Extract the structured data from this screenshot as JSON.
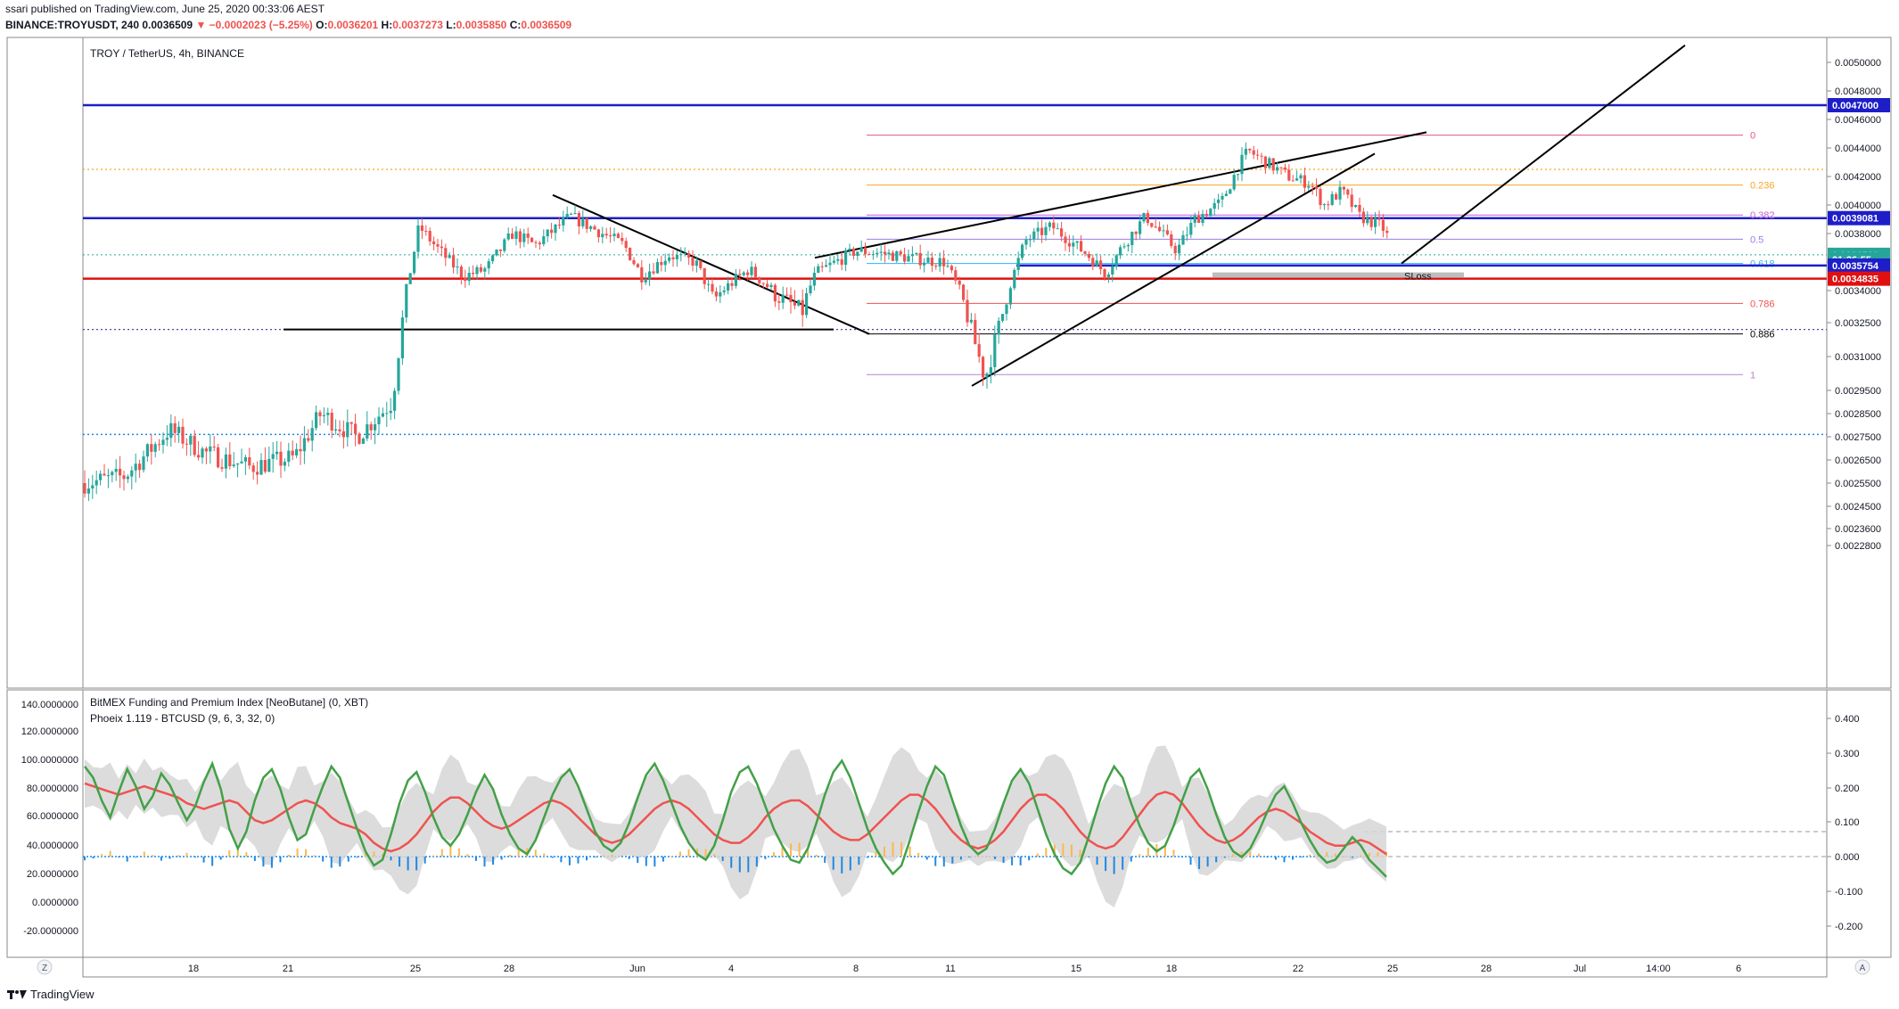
{
  "header": {
    "publisher_line": "ssari published on TradingView.com, June 25, 2020 00:33:06 AEST",
    "symbol": "BINANCE:TROYUSDT, 240",
    "last": "0.0036509",
    "change": "▼ −0.0002023 (−5.25%)",
    "o_label": "O:",
    "o": "0.0036201",
    "h_label": "H:",
    "h": "0.0037273",
    "l_label": "L:",
    "l": "0.0035850",
    "c_label": "C:",
    "c": "0.0036509"
  },
  "footer": {
    "brand": "TradingView"
  },
  "colors": {
    "up": "#26a69a",
    "down": "#ef5350",
    "blue_line": "#1e1ec8",
    "red_line": "#e01010",
    "fib_0": "#e0578a",
    "fib_236": "#f5a623",
    "fib_382": "#c35bd8",
    "fib_5": "#9c7ce8",
    "fib_618": "#29b6f6",
    "fib_786": "#ef5350",
    "fib_886": "#000000",
    "fib_1": "#b388cc",
    "osc_green": "#43a047",
    "osc_red": "#ef5350",
    "funding_blue": "#1e88e5",
    "funding_orange": "#ffb74d"
  },
  "toolbar": {
    "z_button": "Z",
    "a_button": "A"
  },
  "chart_data": [
    {
      "type": "candlestick",
      "title": "TROY / TetherUS, 4h, BINANCE",
      "ylim": [
        0.00228,
        0.00515
      ],
      "y_ticks": [
        "0.0050000",
        "0.0048000",
        "0.0046000",
        "0.0044000",
        "0.0042000",
        "0.0040000",
        "0.0038000",
        "0.0036000",
        "0.0034000",
        "0.0032500",
        "0.0031000",
        "0.0029500",
        "0.0028500",
        "0.0027500",
        "0.0026500",
        "0.0025500",
        "0.0024500",
        "0.0023600",
        "0.0022800"
      ],
      "y_tick_values": [
        0.005,
        0.0048,
        0.0046,
        0.0044,
        0.0042,
        0.004,
        0.0038,
        0.0036,
        0.0034,
        0.00325,
        0.0031,
        0.00295,
        0.00285,
        0.00275,
        0.00265,
        0.00255,
        0.00245,
        0.00236,
        0.00228
      ],
      "x_ticks": [
        "18",
        "21",
        "25",
        "28",
        "Jun",
        "4",
        "8",
        "11",
        "15",
        "18",
        "22",
        "25",
        "28",
        "Jul",
        "14:00",
        "6"
      ],
      "price_labels": [
        {
          "text": "0.0047000",
          "value": 0.0047,
          "color": "#1e1ec8"
        },
        {
          "text": "0.0039081",
          "value": 0.0039081,
          "color": "#1e1ec8"
        },
        {
          "text": "0.0036509",
          "value": 0.0036509,
          "color": "#26a69a"
        },
        {
          "text": "01:26:55",
          "value": 0.00362,
          "color": "#26a69a"
        },
        {
          "text": "0.0035754",
          "value": 0.0035754,
          "color": "#1e1ec8"
        },
        {
          "text": "0.0034835",
          "value": 0.0034835,
          "color": "#e01010"
        }
      ],
      "horizontal_levels": [
        {
          "value": 0.0047,
          "style": "solid",
          "color": "#1e1ec8",
          "width": 2.5
        },
        {
          "value": 0.0039081,
          "style": "solid",
          "color": "#1e1ec8",
          "width": 2.5
        },
        {
          "value": 0.0034835,
          "style": "solid",
          "color": "#e01010",
          "width": 2.5
        },
        {
          "value": 0.00425,
          "style": "dotted",
          "color": "#f5a623",
          "width": 1.2
        },
        {
          "value": 0.00322,
          "style": "dotted",
          "color": "#5b3fa0",
          "width": 1.2
        },
        {
          "value": 0.00276,
          "style": "dotted",
          "color": "#1e88e5",
          "width": 1.5
        },
        {
          "value": 0.0036509,
          "style": "dotted",
          "color": "#26a69a",
          "width": 1
        }
      ],
      "fib_levels": [
        {
          "label": "0",
          "value": 0.00449
        },
        {
          "label": "0.236",
          "value": 0.00414
        },
        {
          "label": "0.382",
          "value": 0.00393
        },
        {
          "label": "0.5",
          "value": 0.00376
        },
        {
          "label": "0.618",
          "value": 0.00359
        },
        {
          "label": "0.786",
          "value": 0.00334
        },
        {
          "label": "0.886",
          "value": 0.0032
        },
        {
          "label": "1",
          "value": 0.00302
        }
      ],
      "annotation": "SLoss"
    },
    {
      "type": "line",
      "title": "BitMEX Funding and Premium Index [NeoButane] (0, XBT)",
      "subtitle": "Phoeix 1.119 - BTCUSD (9, 6, 3, 32, 0)",
      "ylim": [
        -30,
        150
      ],
      "y_ticks_left": [
        "140.0000000",
        "120.0000000",
        "100.0000000",
        "80.0000000",
        "60.0000000",
        "40.0000000",
        "20.0000000",
        "0.0000000",
        "-20.0000000"
      ],
      "y_tick_values_left": [
        140,
        120,
        100,
        80,
        60,
        40,
        20,
        0,
        -20
      ],
      "y_ticks_right": [
        "0.400",
        "0.300",
        "0.200",
        "0.100",
        "0.000",
        "-0.100",
        "-0.200"
      ],
      "y_tick_values_right": [
        0.4,
        0.3,
        0.2,
        0.1,
        0.0,
        -0.1,
        -0.2
      ],
      "series": [
        {
          "name": "",
          "values": [
            96,
            88,
            72,
            60,
            78,
            94,
            82,
            66,
            75,
            91,
            83,
            70,
            58,
            68,
            85,
            98,
            80,
            52,
            38,
            50,
            72,
            88,
            94,
            80,
            60,
            44,
            48,
            66,
            82,
            96,
            88,
            70,
            52,
            36,
            26,
            30,
            48,
            70,
            86,
            92,
            78,
            60,
            46,
            40,
            48,
            62,
            78,
            90,
            80,
            62,
            48,
            38,
            34,
            44,
            60,
            76,
            88,
            94,
            82,
            66,
            50,
            40,
            36,
            42,
            56,
            74,
            90,
            98,
            86,
            70,
            54,
            42,
            34,
            30,
            40,
            58,
            78,
            92,
            96,
            84,
            68,
            52,
            40,
            30,
            28,
            38,
            56,
            76,
            92,
            100,
            88,
            70,
            52,
            38,
            28,
            20,
            26,
            44,
            64,
            82,
            96,
            90,
            72,
            54,
            40,
            34,
            38,
            52,
            70,
            86,
            94,
            84,
            66,
            48,
            34,
            24,
            20,
            28,
            46,
            66,
            84,
            96,
            88,
            70,
            54,
            42,
            36,
            40,
            54,
            72,
            88,
            94,
            80,
            62,
            46,
            36,
            32,
            38,
            50,
            64,
            76,
            82,
            70,
            56,
            44,
            34,
            28,
            30,
            38,
            46,
            40,
            30,
            24,
            18
          ]
        },
        {
          "name": "",
          "values": [
            84,
            82,
            80,
            78,
            76,
            78,
            80,
            82,
            80,
            78,
            76,
            74,
            70,
            68,
            66,
            68,
            70,
            72,
            70,
            64,
            58,
            56,
            58,
            62,
            66,
            70,
            72,
            70,
            66,
            60,
            56,
            54,
            52,
            48,
            42,
            38,
            36,
            38,
            42,
            48,
            56,
            64,
            70,
            74,
            74,
            70,
            64,
            58,
            54,
            52,
            54,
            58,
            62,
            66,
            70,
            72,
            70,
            66,
            60,
            54,
            48,
            44,
            42,
            44,
            48,
            54,
            60,
            66,
            70,
            72,
            70,
            66,
            60,
            54,
            48,
            44,
            42,
            42,
            46,
            52,
            60,
            66,
            70,
            72,
            72,
            68,
            62,
            56,
            50,
            46,
            44,
            44,
            48,
            54,
            60,
            66,
            72,
            76,
            76,
            72,
            66,
            58,
            50,
            44,
            40,
            38,
            40,
            44,
            50,
            58,
            66,
            72,
            76,
            76,
            72,
            66,
            58,
            50,
            44,
            40,
            38,
            40,
            46,
            54,
            62,
            70,
            76,
            78,
            76,
            70,
            62,
            54,
            48,
            44,
            42,
            44,
            48,
            54,
            60,
            64,
            66,
            64,
            60,
            56,
            50,
            46,
            42,
            40,
            40,
            42,
            44,
            42,
            38,
            34
          ]
        }
      ]
    }
  ]
}
